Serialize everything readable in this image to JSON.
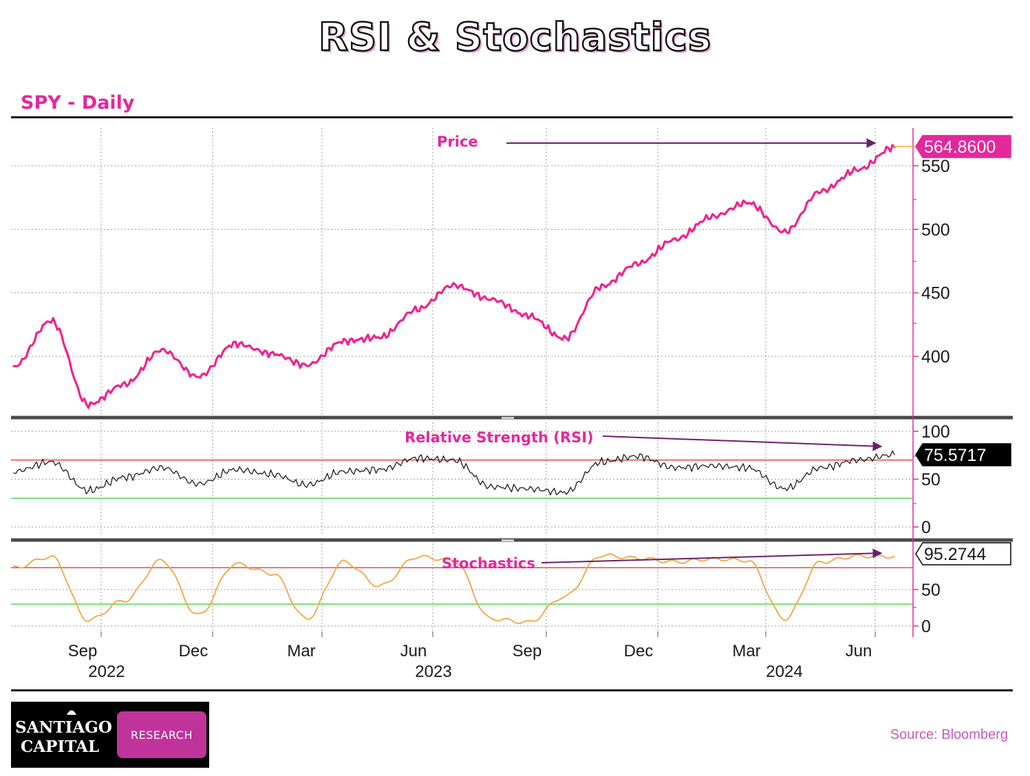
{
  "title": "RSI & Stochastics",
  "subtitle": "SPY - Daily",
  "source": "Source: Bloomberg",
  "logo": {
    "line1": "SANTIAGO",
    "line2": "CAPITAL",
    "badge": "RESEARCH"
  },
  "colors": {
    "price": "#f0228f",
    "rsi": "#1a1a1a",
    "stochastics": "#f5a442",
    "overbought": "#e33a3a",
    "oversold": "#45d345",
    "annotation": "#6b1f6b",
    "accent": "#e5279b"
  },
  "annotations": {
    "price": "Price",
    "rsi": "Relative Strength (RSI)",
    "stochastics": "Stochastics"
  },
  "x_axis": {
    "months": [
      "Sep",
      "Dec",
      "Mar",
      "Jun",
      "Sep",
      "Dec",
      "Mar",
      "Jun"
    ],
    "years": [
      "2022",
      "2023",
      "2024"
    ]
  },
  "chart_data": [
    {
      "type": "line",
      "name": "price",
      "y_ticks": [
        "550",
        "500",
        "450",
        "400"
      ],
      "ylim": [
        320,
        590
      ],
      "last_value": "564.8600",
      "x": [
        "2022-07",
        "2022-08",
        "2022-09",
        "2022-10",
        "2022-11",
        "2022-12",
        "2023-01",
        "2023-02",
        "2023-03",
        "2023-04",
        "2023-05",
        "2023-06",
        "2023-07",
        "2023-08",
        "2023-09",
        "2023-10",
        "2023-11",
        "2023-12",
        "2024-01",
        "2024-02",
        "2024-03",
        "2024-04",
        "2024-05",
        "2024-06",
        "2024-07"
      ],
      "values": [
        392,
        428,
        362,
        378,
        405,
        384,
        410,
        402,
        393,
        412,
        415,
        437,
        456,
        445,
        432,
        414,
        455,
        473,
        492,
        510,
        521,
        498,
        530,
        547,
        564.86
      ]
    },
    {
      "type": "line",
      "name": "rsi",
      "y_ticks": [
        "100",
        "50",
        "0"
      ],
      "ylim": [
        0,
        100
      ],
      "overbought": 70,
      "oversold": 30,
      "last_value": "75.5717",
      "x": [
        "2022-07",
        "2022-08",
        "2022-09",
        "2022-10",
        "2022-11",
        "2022-12",
        "2023-01",
        "2023-02",
        "2023-03",
        "2023-04",
        "2023-05",
        "2023-06",
        "2023-07",
        "2023-08",
        "2023-09",
        "2023-10",
        "2023-11",
        "2023-12",
        "2024-01",
        "2024-02",
        "2024-03",
        "2024-04",
        "2024-05",
        "2024-06",
        "2024-07"
      ],
      "values": [
        58,
        68,
        38,
        52,
        62,
        45,
        60,
        55,
        44,
        58,
        60,
        72,
        70,
        42,
        40,
        36,
        68,
        74,
        62,
        64,
        62,
        40,
        62,
        70,
        75.57
      ]
    },
    {
      "type": "line",
      "name": "stochastics",
      "y_ticks": [
        "50",
        "0"
      ],
      "ylim": [
        0,
        110
      ],
      "overbought": 80,
      "oversold": 30,
      "last_value": "95.2744",
      "x": [
        "2022-07",
        "2022-08",
        "2022-09",
        "2022-10",
        "2022-11",
        "2022-12",
        "2023-01",
        "2023-02",
        "2023-03",
        "2023-04",
        "2023-05",
        "2023-06",
        "2023-07",
        "2023-08",
        "2023-09",
        "2023-10",
        "2023-11",
        "2023-12",
        "2024-01",
        "2024-02",
        "2024-03",
        "2024-04",
        "2024-05",
        "2024-06",
        "2024-07"
      ],
      "values": [
        80,
        95,
        8,
        35,
        90,
        15,
        85,
        72,
        10,
        88,
        55,
        95,
        90,
        10,
        5,
        40,
        97,
        93,
        88,
        92,
        90,
        10,
        88,
        96,
        95.27
      ]
    }
  ]
}
